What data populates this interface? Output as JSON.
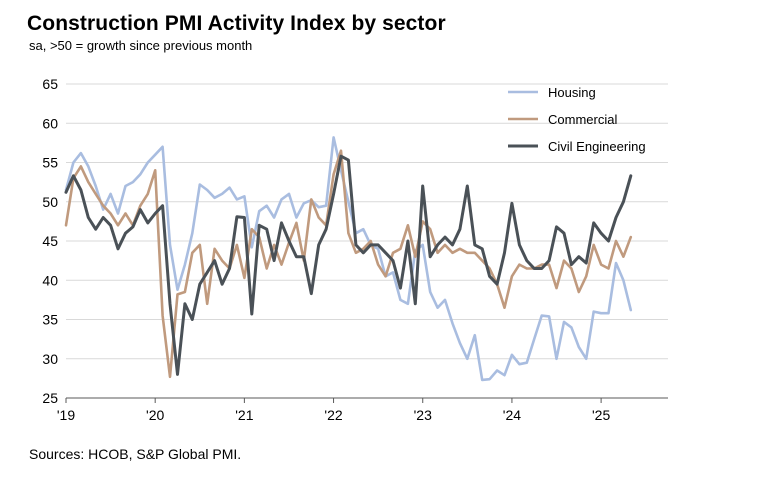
{
  "header": {
    "title": "Construction PMI Activity Index by sector",
    "subtitle": "sa, >50 = growth since previous month"
  },
  "footer": {
    "source": "Sources: HCOB, S&P Global PMI."
  },
  "colors": {
    "housing": "#a9bde0",
    "commercial": "#c09a7e",
    "civil": "#4a5157",
    "grid": "#d9d9d9"
  },
  "chart_data": {
    "type": "line",
    "title": "Construction PMI Activity Index by sector",
    "subtitle": "sa, >50 = growth since previous month",
    "ylim": [
      25,
      65
    ],
    "yticks": [
      25,
      30,
      35,
      40,
      45,
      50,
      55,
      60,
      65
    ],
    "xlim": [
      2019.0,
      2025.75
    ],
    "xticks": [
      {
        "value": 2019,
        "label": "'19"
      },
      {
        "value": 2020,
        "label": "'20"
      },
      {
        "value": 2021,
        "label": "'21"
      },
      {
        "value": 2022,
        "label": "'22"
      },
      {
        "value": 2023,
        "label": "'23"
      },
      {
        "value": 2024,
        "label": "'24"
      },
      {
        "value": 2025,
        "label": "'25"
      }
    ],
    "grid": true,
    "legend_position": "top-right",
    "x_start": "2019-01",
    "frequency": "monthly",
    "series": [
      {
        "name": "Housing",
        "color_key": "housing",
        "values": [
          51.5,
          55.0,
          56.2,
          54.5,
          52.0,
          49.0,
          51.0,
          48.5,
          52.0,
          52.5,
          53.5,
          55.0,
          56.0,
          57.0,
          44.5,
          38.8,
          42.0,
          46.0,
          52.2,
          51.5,
          50.5,
          51.0,
          51.8,
          50.3,
          50.7,
          44.2,
          48.8,
          49.5,
          48.0,
          50.3,
          51.0,
          48.0,
          49.8,
          50.2,
          49.3,
          49.5,
          58.2,
          54.0,
          50.0,
          46.0,
          46.5,
          44.5,
          44.0,
          40.5,
          41.0,
          37.5,
          37.0,
          43.8,
          44.5,
          38.5,
          36.5,
          37.5,
          34.5,
          32.0,
          30.0,
          33.0,
          27.3,
          27.4,
          28.5,
          27.9,
          30.5,
          29.3,
          29.5,
          32.5,
          35.5,
          35.4,
          30.0,
          34.7,
          34.0,
          31.5,
          30.0,
          36.0,
          35.8,
          35.8,
          42.2,
          40.0,
          36.2
        ]
      },
      {
        "name": "Commercial",
        "color_key": "commercial",
        "values": [
          47.0,
          53.0,
          54.5,
          52.5,
          51.0,
          49.5,
          48.5,
          47.0,
          48.5,
          47.0,
          49.5,
          51.0,
          54.0,
          35.5,
          27.7,
          38.2,
          38.5,
          43.5,
          44.5,
          37.0,
          44.0,
          42.5,
          41.5,
          44.5,
          40.3,
          46.5,
          45.5,
          41.5,
          44.5,
          42.0,
          44.8,
          47.3,
          42.5,
          50.3,
          48.0,
          47.0,
          53.5,
          56.5,
          46.0,
          43.5,
          44.0,
          45.0,
          42.0,
          40.5,
          43.5,
          44.0,
          47.0,
          43.0,
          47.5,
          46.5,
          43.5,
          44.5,
          43.5,
          44.0,
          43.5,
          43.5,
          42.5,
          41.5,
          39.5,
          36.5,
          40.5,
          42.0,
          41.5,
          41.5,
          42.0,
          42.0,
          39.0,
          42.5,
          41.5,
          38.5,
          40.5,
          44.5,
          42.0,
          41.5,
          45.0,
          43.0,
          45.5
        ]
      },
      {
        "name": "Civil Engineering",
        "color_key": "civil",
        "values": [
          51.2,
          53.3,
          51.5,
          48.0,
          46.5,
          48.0,
          47.0,
          44.0,
          46.0,
          46.8,
          49.0,
          47.3,
          48.5,
          49.5,
          37.0,
          28.0,
          37.0,
          35.0,
          39.5,
          41.0,
          42.5,
          39.5,
          41.5,
          48.1,
          48.0,
          35.7,
          47.0,
          46.5,
          42.5,
          47.3,
          45.0,
          43.0,
          43.0,
          38.3,
          44.5,
          46.5,
          51.0,
          55.8,
          55.3,
          44.5,
          43.5,
          44.5,
          44.5,
          43.5,
          42.5,
          39.0,
          45.0,
          37.0,
          52.0,
          43.0,
          44.5,
          45.5,
          44.5,
          46.5,
          52.0,
          44.5,
          44.0,
          40.5,
          39.5,
          43.5,
          49.8,
          44.5,
          42.5,
          41.5,
          41.5,
          42.5,
          46.8,
          46.0,
          42.0,
          43.0,
          42.2,
          47.3,
          46.0,
          45.0,
          48.0,
          50.0,
          53.3
        ]
      }
    ]
  }
}
